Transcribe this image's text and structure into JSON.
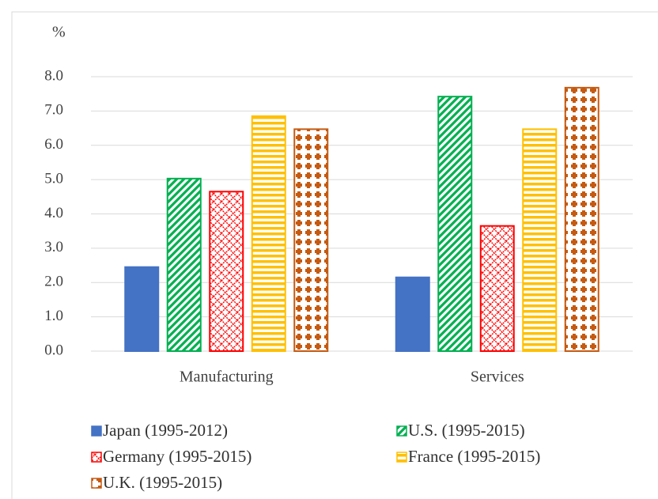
{
  "chart_data": {
    "type": "bar",
    "y_label": "%",
    "categories": [
      "Manufacturing",
      "Services"
    ],
    "series": [
      {
        "name": "Japan (1995-2012)",
        "color": "#4472c4",
        "pattern": "solid",
        "values": [
          2.45,
          2.15
        ]
      },
      {
        "name": "U.S. (1995-2015)",
        "color": "#00b050",
        "pattern": "diagonal",
        "values": [
          5.03,
          7.42
        ]
      },
      {
        "name": "Germany (1995-2015)",
        "color": "#ff0000",
        "pattern": "crosshatch",
        "values": [
          4.65,
          3.65
        ]
      },
      {
        "name": "France (1995-2015)",
        "color": "#ffc000",
        "pattern": "horizontal",
        "values": [
          6.85,
          6.47
        ]
      },
      {
        "name": "U.K. (1995-2015)",
        "color": "#c55a11",
        "pattern": "dots",
        "values": [
          6.47,
          7.68
        ]
      }
    ],
    "ylim": [
      0,
      8
    ],
    "yticks": [
      {
        "value": 0,
        "label": "0.0"
      },
      {
        "value": 1,
        "label": "1.0"
      },
      {
        "value": 2,
        "label": "2.0"
      },
      {
        "value": 3,
        "label": "3.0"
      },
      {
        "value": 4,
        "label": "4.0"
      },
      {
        "value": 5,
        "label": "5.0"
      },
      {
        "value": 6,
        "label": "6.0"
      },
      {
        "value": 7,
        "label": "7.0"
      },
      {
        "value": 8,
        "label": "8.0"
      }
    ],
    "grid": true,
    "legend": "bottom"
  }
}
